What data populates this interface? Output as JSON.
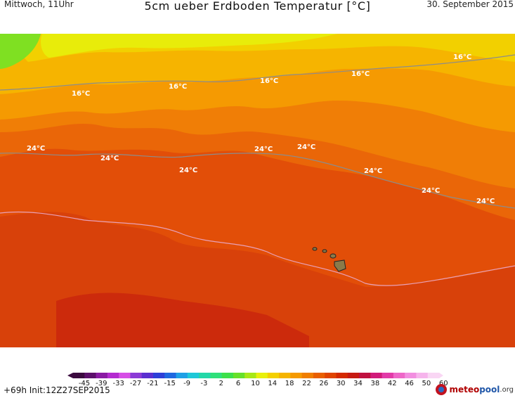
{
  "header": {
    "left": "Mittwoch, 11Uhr",
    "title": "5cm ueber Erdboden Temperatur [°C]",
    "right": "30. September 2015"
  },
  "footer": {
    "run": "+69h Init:12Z27SEP2015",
    "logo_main": "meteo",
    "logo_accent": "pool",
    "logo_tld": ".org"
  },
  "map": {
    "isotherm_labels": [
      "16°C",
      "16°C",
      "16°C",
      "16°C",
      "16°C",
      "24°C",
      "24°C",
      "24°C",
      "24°C",
      "24°C",
      "24°C",
      "24°C",
      "24°C"
    ]
  },
  "scale": {
    "ticks": [
      "-45",
      "-39",
      "-33",
      "-27",
      "-21",
      "-15",
      "-9",
      "-3",
      "2",
      "6",
      "10",
      "14",
      "18",
      "22",
      "26",
      "30",
      "34",
      "38",
      "42",
      "46",
      "50",
      "60"
    ],
    "colors": [
      "#3b0a3f",
      "#5c0f6b",
      "#8a1aa3",
      "#b42ad0",
      "#d64ee6",
      "#8b3ad6",
      "#5a2fd0",
      "#2d3fd8",
      "#1e68e0",
      "#1ea0e6",
      "#1ec8d8",
      "#22d8a8",
      "#2ee07a",
      "#3ce04a",
      "#66e02a",
      "#a8e816",
      "#e8f00c",
      "#f4d000",
      "#f5b400",
      "#f59a00",
      "#f07e00",
      "#e95f00",
      "#e04400",
      "#d42a00",
      "#c71a12",
      "#c01040",
      "#d11a7a",
      "#e23aa8",
      "#ee66c8",
      "#f28ee0",
      "#f6b4ec",
      "#f9d6f4"
    ]
  }
}
